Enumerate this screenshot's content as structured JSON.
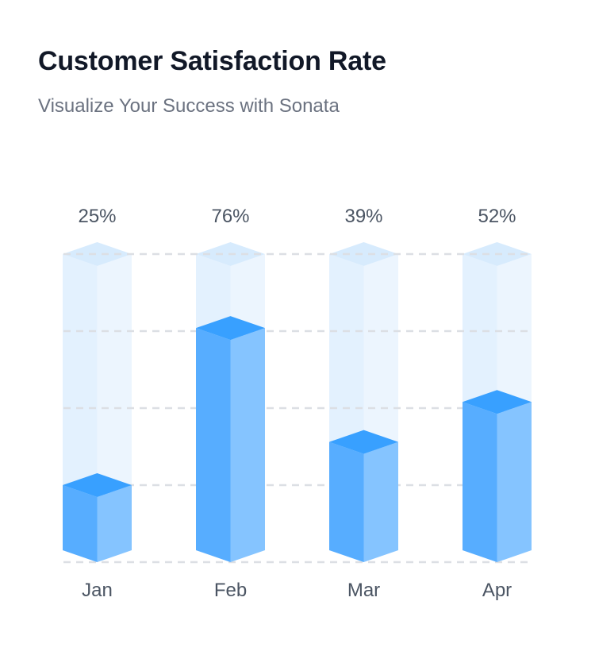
{
  "title": "Customer Satisfaction Rate",
  "subtitle": "Visualize Your Success with Sonata",
  "chart_data": {
    "type": "bar",
    "categories": [
      "Jan",
      "Feb",
      "Mar",
      "Apr"
    ],
    "values": [
      25,
      76,
      39,
      52
    ],
    "value_labels": [
      "25%",
      "76%",
      "39%",
      "52%"
    ],
    "ylim": [
      0,
      100
    ],
    "grid": true,
    "colors": {
      "fill_front": "#57adff",
      "fill_side": "#85c4ff",
      "fill_top": "#38a0ff",
      "track_front": "#e3f1fe",
      "track_side": "#ecf5fe",
      "track_top": "#d7ebfd",
      "grid": "#dcdfe4"
    }
  }
}
